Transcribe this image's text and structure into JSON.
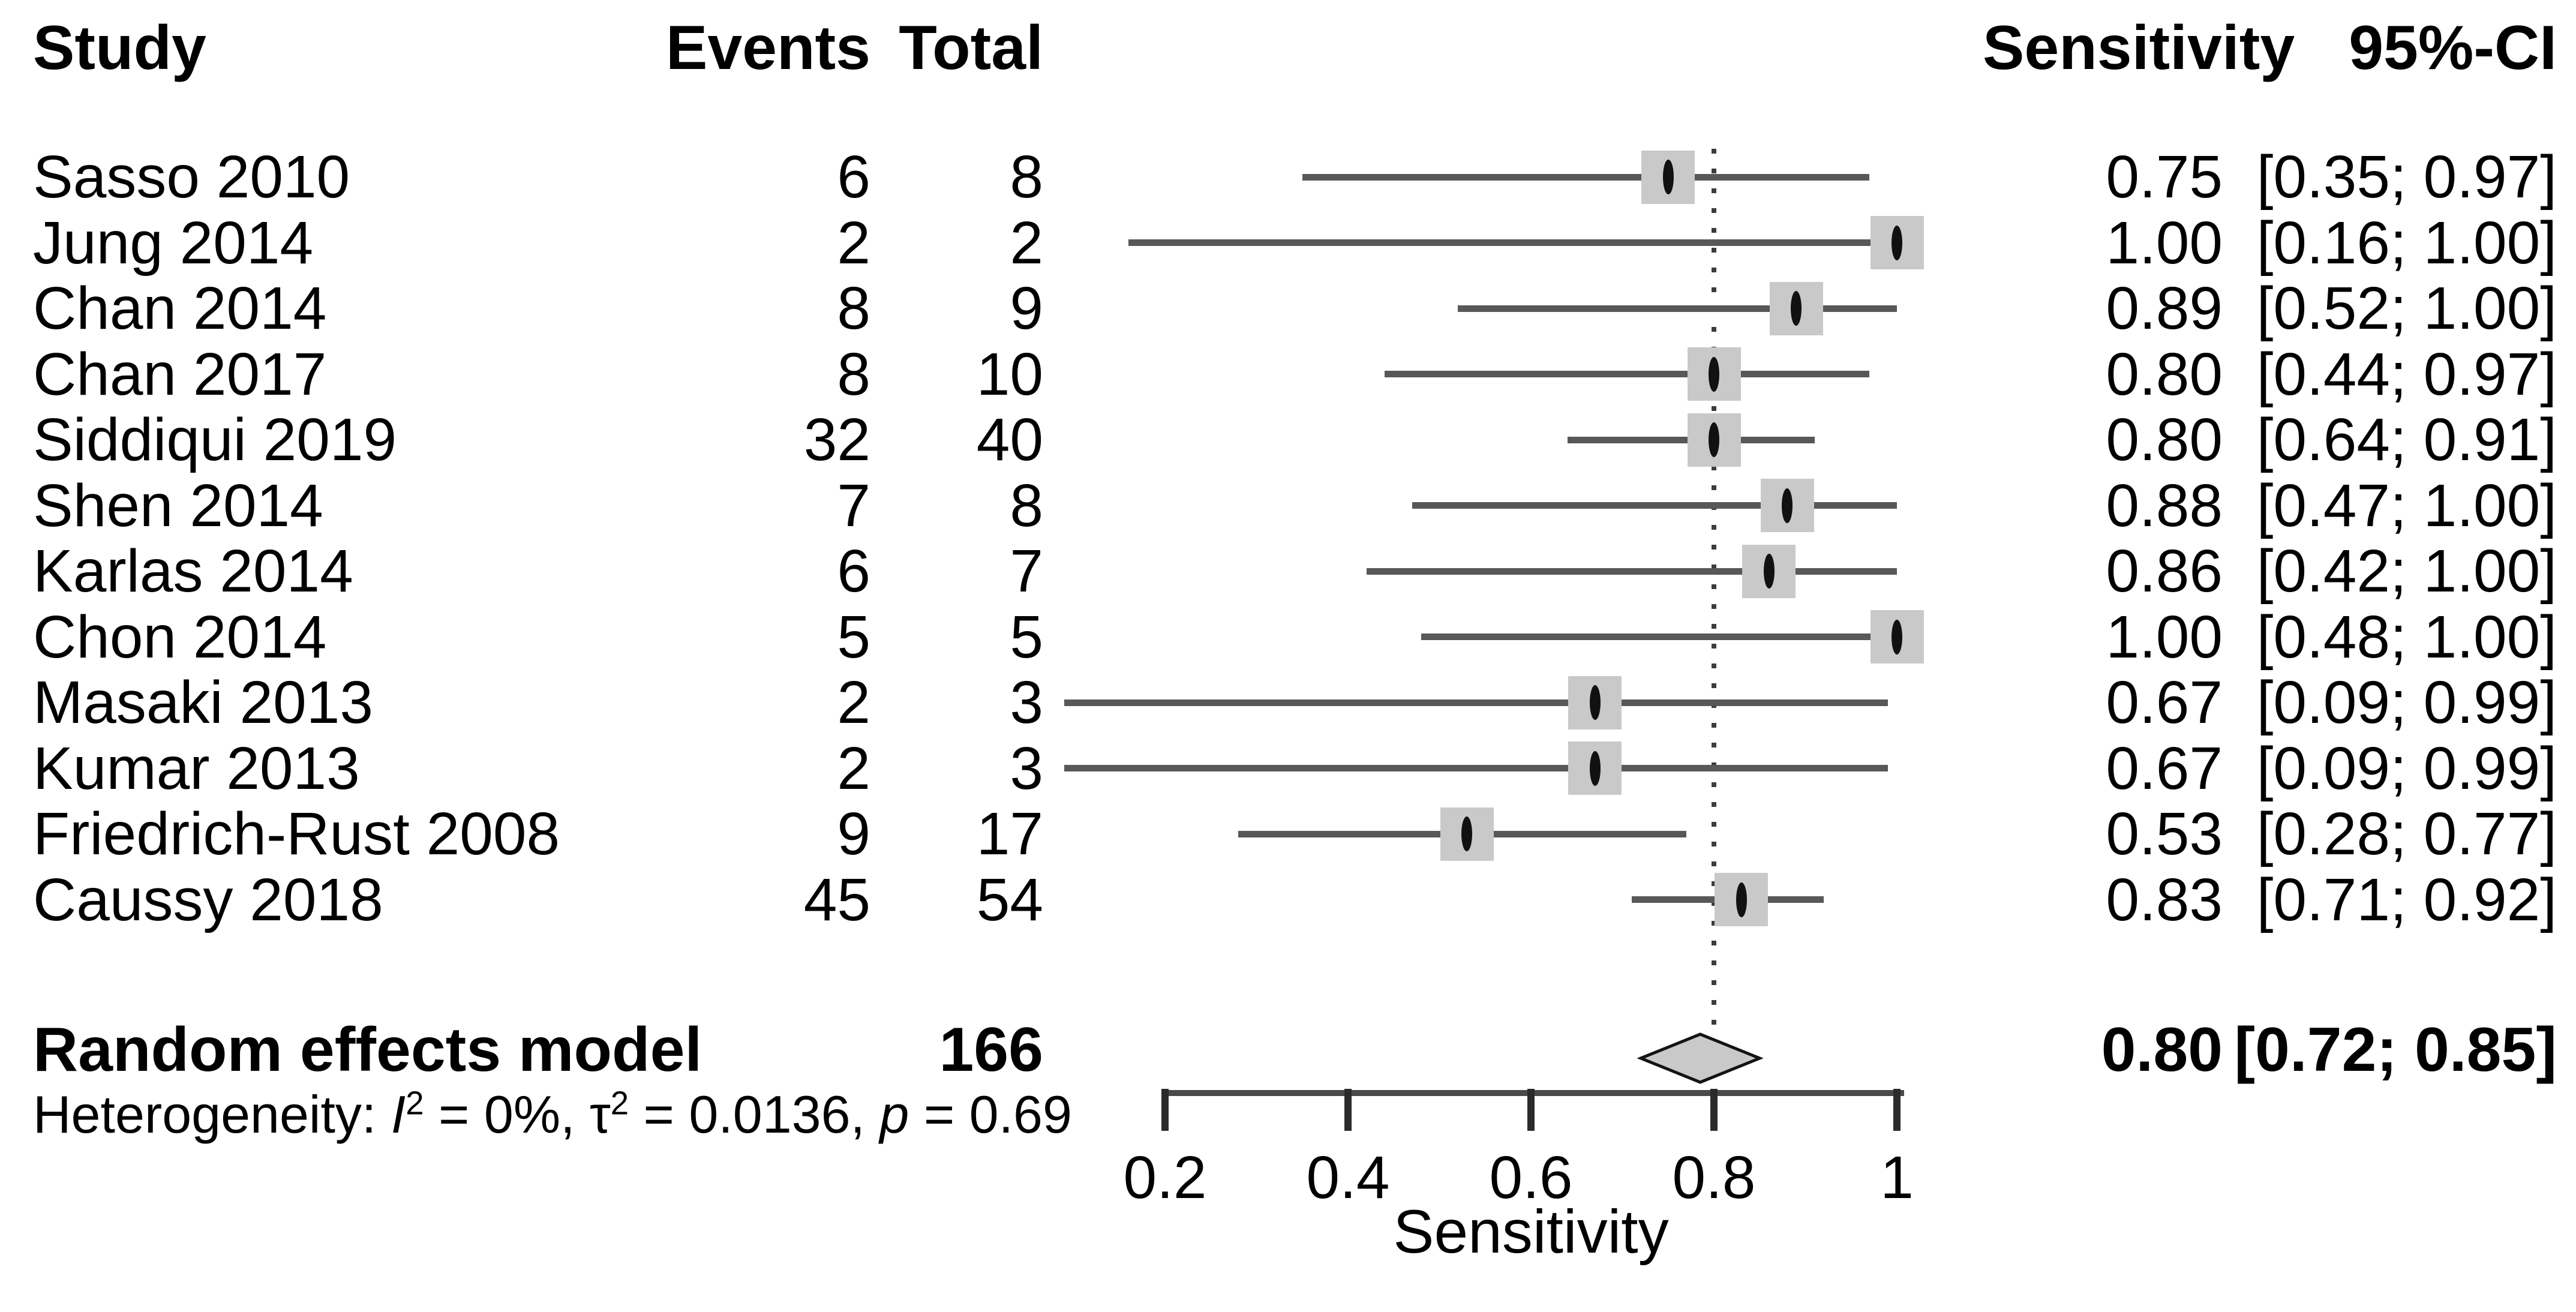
{
  "header": {
    "study": "Study",
    "events": "Events",
    "total": "Total",
    "sensitivity": "Sensitivity",
    "ci": "95%-CI"
  },
  "colors": {
    "text": "#000000",
    "ci_line": "#585858",
    "square_fill": "#c9c9c9",
    "point_marker": "#111111",
    "diamond_fill": "#c9c9c9",
    "diamond_border": "#141414",
    "axis_line": "#4a4a4a",
    "tick": "#2b2b2b",
    "reference_dotted": "#3c3c3c",
    "background": "#ffffff"
  },
  "chart_data": {
    "type": "forest",
    "title": "",
    "x_axis": {
      "label": "Sensitivity",
      "range": [
        0.2,
        1.0
      ],
      "ticks": [
        0.2,
        0.4,
        0.6,
        0.8,
        1.0
      ],
      "tick_labels": [
        "0.2",
        "0.4",
        "0.6",
        "0.8",
        "1"
      ],
      "reference_line": 0.8,
      "grid": false
    },
    "studies": [
      {
        "label": "Sasso 2010",
        "events": 6,
        "total": 8,
        "sensitivity": 0.75,
        "sens_text": "0.75",
        "ci_low": 0.35,
        "ci_high": 0.97,
        "ci_text": "[0.35; 0.97]"
      },
      {
        "label": "Jung 2014",
        "events": 2,
        "total": 2,
        "sensitivity": 1.0,
        "sens_text": "1.00",
        "ci_low": 0.16,
        "ci_high": 1.0,
        "ci_text": "[0.16; 1.00]"
      },
      {
        "label": "Chan 2014",
        "events": 8,
        "total": 9,
        "sensitivity": 0.89,
        "sens_text": "0.89",
        "ci_low": 0.52,
        "ci_high": 1.0,
        "ci_text": "[0.52; 1.00]"
      },
      {
        "label": "Chan 2017",
        "events": 8,
        "total": 10,
        "sensitivity": 0.8,
        "sens_text": "0.80",
        "ci_low": 0.44,
        "ci_high": 0.97,
        "ci_text": "[0.44; 0.97]"
      },
      {
        "label": "Siddiqui 2019",
        "events": 32,
        "total": 40,
        "sensitivity": 0.8,
        "sens_text": "0.80",
        "ci_low": 0.64,
        "ci_high": 0.91,
        "ci_text": "[0.64; 0.91]"
      },
      {
        "label": "Shen 2014",
        "events": 7,
        "total": 8,
        "sensitivity": 0.88,
        "sens_text": "0.88",
        "ci_low": 0.47,
        "ci_high": 1.0,
        "ci_text": "[0.47; 1.00]"
      },
      {
        "label": "Karlas 2014",
        "events": 6,
        "total": 7,
        "sensitivity": 0.86,
        "sens_text": "0.86",
        "ci_low": 0.42,
        "ci_high": 1.0,
        "ci_text": "[0.42; 1.00]"
      },
      {
        "label": "Chon 2014",
        "events": 5,
        "total": 5,
        "sensitivity": 1.0,
        "sens_text": "1.00",
        "ci_low": 0.48,
        "ci_high": 1.0,
        "ci_text": "[0.48; 1.00]"
      },
      {
        "label": "Masaki 2013",
        "events": 2,
        "total": 3,
        "sensitivity": 0.67,
        "sens_text": "0.67",
        "ci_low": 0.09,
        "ci_high": 0.99,
        "ci_text": "[0.09; 0.99]"
      },
      {
        "label": "Kumar 2013",
        "events": 2,
        "total": 3,
        "sensitivity": 0.67,
        "sens_text": "0.67",
        "ci_low": 0.09,
        "ci_high": 0.99,
        "ci_text": "[0.09; 0.99]"
      },
      {
        "label": "Friedrich-Rust 2008",
        "events": 9,
        "total": 17,
        "sensitivity": 0.53,
        "sens_text": "0.53",
        "ci_low": 0.28,
        "ci_high": 0.77,
        "ci_text": "[0.28; 0.77]"
      },
      {
        "label": "Caussy 2018",
        "events": 45,
        "total": 54,
        "sensitivity": 0.83,
        "sens_text": "0.83",
        "ci_low": 0.71,
        "ci_high": 0.92,
        "ci_text": "[0.71; 0.92]"
      }
    ],
    "summary": {
      "label": "Random effects model",
      "total": 166,
      "sensitivity": 0.8,
      "sens_text": "0.80",
      "ci_low": 0.72,
      "ci_high": 0.85,
      "ci_text": "[0.72; 0.85]"
    },
    "heterogeneity_segments": [
      {
        "text": "Heterogeneity: "
      },
      {
        "text": "I",
        "italic": true
      },
      {
        "text": "2",
        "sup": true
      },
      {
        "text": " = 0%, "
      },
      {
        "text": "τ"
      },
      {
        "text": "2",
        "sup": true
      },
      {
        "text": " = 0.0136, "
      },
      {
        "text": "p",
        "italic": true
      },
      {
        "text": " = 0.69"
      }
    ]
  }
}
